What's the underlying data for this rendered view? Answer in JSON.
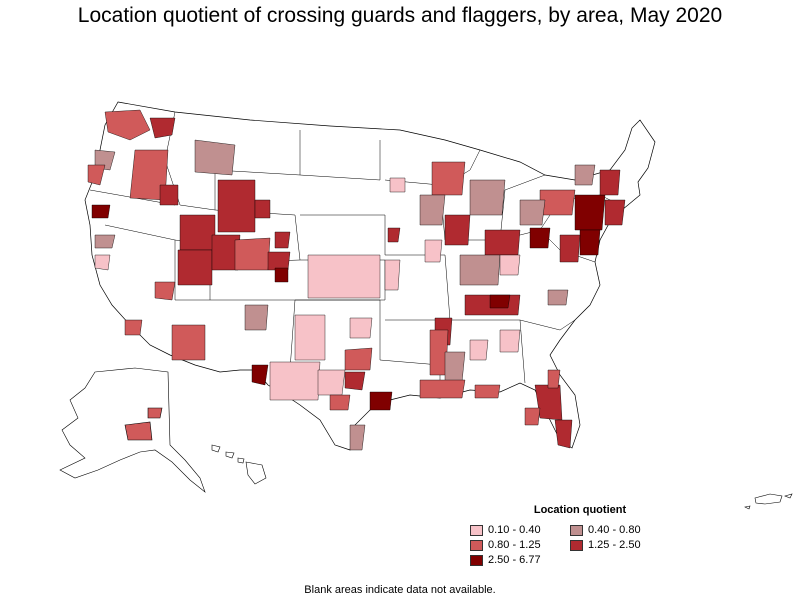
{
  "title": "Location quotient of crossing guards and flaggers, by area, May 2020",
  "legend": {
    "title": "Location quotient",
    "items": [
      {
        "label": "0.10 - 0.40",
        "color": "#f7c2c8"
      },
      {
        "label": "0.40 - 0.80",
        "color": "#c09090"
      },
      {
        "label": "0.80 - 1.25",
        "color": "#d05a5a"
      },
      {
        "label": "1.25 - 2.50",
        "color": "#b02a30"
      },
      {
        "label": "2.50 - 6.77",
        "color": "#800000"
      }
    ]
  },
  "footnote": "Blank areas indicate data not available."
}
